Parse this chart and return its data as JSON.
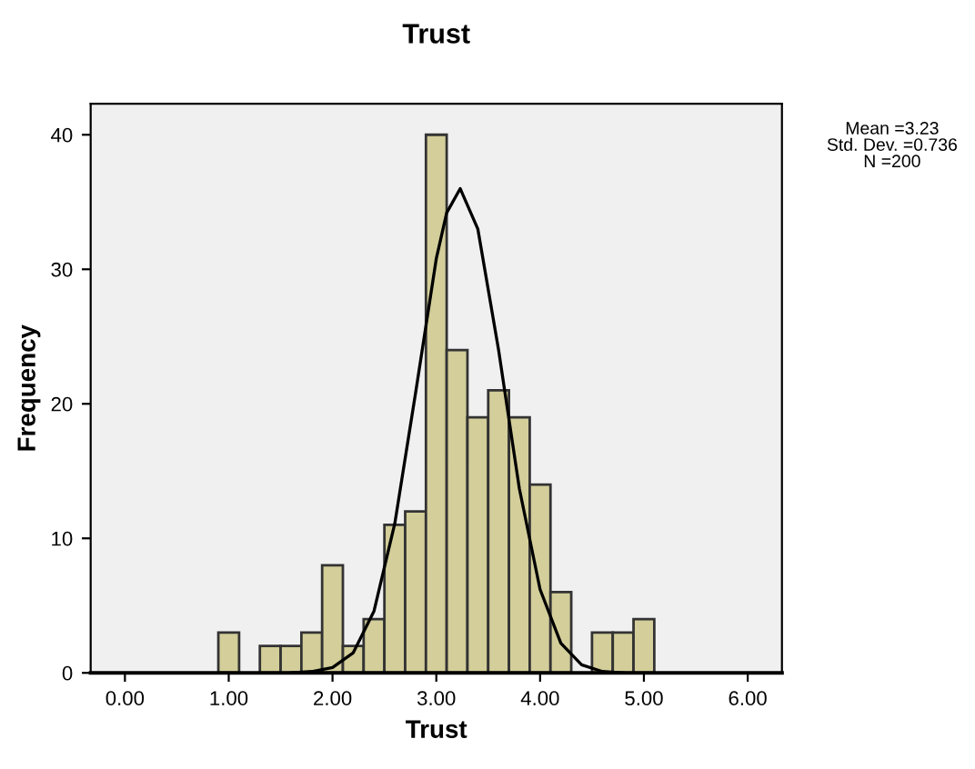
{
  "chart_data": {
    "type": "histogram",
    "title": "Trust",
    "xlabel": "Trust",
    "ylabel": "Frequency",
    "bins": [
      0.9,
      1.1,
      1.3,
      1.5,
      1.7,
      1.9,
      2.1,
      2.3,
      2.5,
      2.7,
      2.9,
      3.1,
      3.3,
      3.5,
      3.7,
      3.9,
      4.1,
      4.3,
      4.5,
      4.7,
      4.9,
      5.1
    ],
    "values": [
      3,
      0,
      2,
      2,
      3,
      8,
      2,
      4,
      11,
      12,
      40,
      24,
      19,
      21,
      19,
      14,
      6,
      0,
      3,
      3,
      4
    ],
    "color": "#d3ce9a",
    "series": [
      {
        "type": "line",
        "color": "#000000",
        "x": [
          1.6,
          1.8,
          2.0,
          2.2,
          2.4,
          2.6,
          2.8,
          3.0,
          3.1,
          3.23,
          3.4,
          3.6,
          3.8,
          4.0,
          4.2,
          4.4,
          4.6,
          4.8
        ],
        "values": [
          0,
          0.1,
          0.4,
          1.5,
          4.6,
          11.1,
          20.8,
          30.8,
          34.2,
          36,
          33,
          24,
          13.7,
          6.2,
          2.2,
          0.6,
          0.1,
          0
        ]
      }
    ],
    "xlim": [
      -0.33,
      6.33
    ],
    "ylim": [
      0,
      42.3
    ],
    "xticks": [
      {
        "value": 0,
        "label": "0.00"
      },
      {
        "value": 1,
        "label": "1.00"
      },
      {
        "value": 2,
        "label": "2.00"
      },
      {
        "value": 3,
        "label": "3.00"
      },
      {
        "value": 4,
        "label": "4.00"
      },
      {
        "value": 5,
        "label": "5.00"
      },
      {
        "value": 6,
        "label": "6.00"
      }
    ],
    "yticks": [
      0,
      10,
      20,
      30,
      40
    ],
    "grid": false,
    "legend": false,
    "annotations": [
      "Mean =3.23\nStd. Dev. =0.736\nN =200"
    ]
  }
}
